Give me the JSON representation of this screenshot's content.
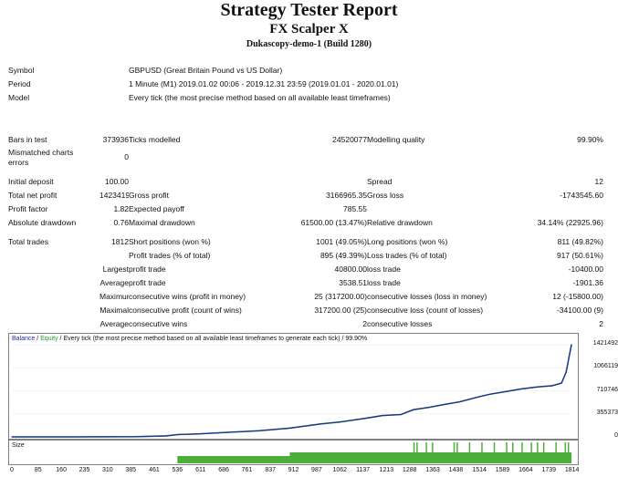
{
  "header": {
    "title": "Strategy Tester Report",
    "expert": "FX Scalper X",
    "server": "Dukascopy-demo-1 (Build 1280)"
  },
  "info": [
    {
      "label": "Symbol",
      "value": "GBPUSD (Great Britain Pound vs US Dollar)"
    },
    {
      "label": "Period",
      "value": "1 Minute (M1) 2019.01.02 00:06 - 2019.12.31 23:59 (2019.01.01 - 2020.01.01)"
    },
    {
      "label": "Model",
      "value": "Every tick (the most precise method based on all available least timeframes)"
    }
  ],
  "bars": {
    "bars_label": "Bars in test",
    "bars_value": "373936",
    "ticks_label": "Ticks modelled",
    "ticks_value": "24520077",
    "quality_label": "Modelling quality",
    "quality_value": "99.90%",
    "mismatch_label1": "Mismatched charts",
    "mismatch_label2": "errors",
    "mismatch_value": "0"
  },
  "stats1": [
    {
      "l1": "Initial deposit",
      "v1": "100.00",
      "l2": "",
      "v2": "",
      "l3": "Spread",
      "v3": "12"
    },
    {
      "l1": "Total net profit",
      "v1": "1423419.75",
      "l2": "Gross profit",
      "v2": "3166965.35",
      "l3": "Gross loss",
      "v3": "-1743545.60"
    },
    {
      "l1": "Profit factor",
      "v1": "1.82",
      "l2": "Expected payoff",
      "v2": "785.55",
      "l3": "",
      "v3": ""
    },
    {
      "l1": "Absolute drawdown",
      "v1": "0.76",
      "l2": "Maximal drawdown",
      "v2": "61500.00 (13.47%)",
      "l3": "Relative drawdown",
      "v3": "34.14% (22925.96)"
    }
  ],
  "stats2": [
    {
      "l1": "Total trades",
      "v1": "1812",
      "l2": "Short positions (won %)",
      "v2": "1001 (49.05%)",
      "l3": "Long positions (won %)",
      "v3": "811 (49.82%)"
    },
    {
      "l1": "",
      "v1": "",
      "l2": "Profit trades (% of total)",
      "v2": "895 (49.39%)",
      "l3": "Loss trades (% of total)",
      "v3": "917 (50.61%)"
    },
    {
      "l1": "",
      "v1": "Largest",
      "l2": "profit trade",
      "v2": "40800.00",
      "l3": "loss trade",
      "v3": "-10400.00"
    },
    {
      "l1": "",
      "v1": "Average",
      "l2": "profit trade",
      "v2": "3538.51",
      "l3": "loss trade",
      "v3": "-1901.36"
    },
    {
      "l1": "",
      "v1": "Maximum",
      "l2": "consecutive wins (profit in money)",
      "v2": "25 (317200.00)",
      "l3": "consecutive losses (loss in money)",
      "v3": "12 (-15800.00)"
    },
    {
      "l1": "",
      "v1": "Maximal",
      "l2": "consecutive profit (count of wins)",
      "v2": "317200.00 (25)",
      "l3": "consecutive loss (count of losses)",
      "v3": "-34100.00 (9)"
    },
    {
      "l1": "",
      "v1": "Average",
      "l2": "consecutive wins",
      "v2": "2",
      "l3": "consecutive losses",
      "v3": "2"
    }
  ],
  "chart": {
    "legend_balance": "Balance",
    "legend_sep": " / ",
    "legend_equity": "Equity",
    "legend_rest": " / Every tick (the most precise method based on all available least timeframes to generate each tick) / 99.90%",
    "size_label": "Size",
    "colors": {
      "balance": "#1f2aa8",
      "equity": "#2a9a2a",
      "size": "#4caf3a"
    }
  },
  "chart_data": {
    "type": "line",
    "title": "",
    "xlabel": "",
    "ylabel": "",
    "ylim": [
      0,
      1421492
    ],
    "xlim": [
      0,
      1812
    ],
    "y_ticks": [
      "1421492",
      "1066119",
      "710746",
      "355373",
      "0"
    ],
    "x_ticks": [
      "0",
      "85",
      "160",
      "235",
      "310",
      "385",
      "461",
      "536",
      "611",
      "686",
      "761",
      "837",
      "912",
      "987",
      "1062",
      "1137",
      "1213",
      "1288",
      "1363",
      "1438",
      "1514",
      "1589",
      "1664",
      "1739",
      "1814"
    ],
    "series": [
      {
        "name": "Balance",
        "x": [
          0,
          100,
          200,
          300,
          400,
          500,
          536,
          600,
          700,
          800,
          900,
          1000,
          1062,
          1150,
          1200,
          1260,
          1300,
          1350,
          1400,
          1450,
          1514,
          1550,
          1600,
          1650,
          1700,
          1750,
          1780,
          1795,
          1812
        ],
        "y": [
          100,
          200,
          500,
          1500,
          3500,
          15000,
          35000,
          45000,
          70000,
          95000,
          135000,
          200000,
          230000,
          290000,
          330000,
          345000,
          420000,
          455000,
          500000,
          540000,
          620000,
          660000,
          700000,
          740000,
          770000,
          790000,
          830000,
          1000000,
          1423419
        ]
      }
    ],
    "size_series": {
      "x_start": 536,
      "x_thick_start": 900,
      "spikes": [
        1300,
        1310,
        1340,
        1360,
        1430,
        1440,
        1480,
        1520,
        1560,
        1600,
        1620,
        1650,
        1680,
        1700,
        1720,
        1760,
        1790,
        1800
      ]
    }
  }
}
